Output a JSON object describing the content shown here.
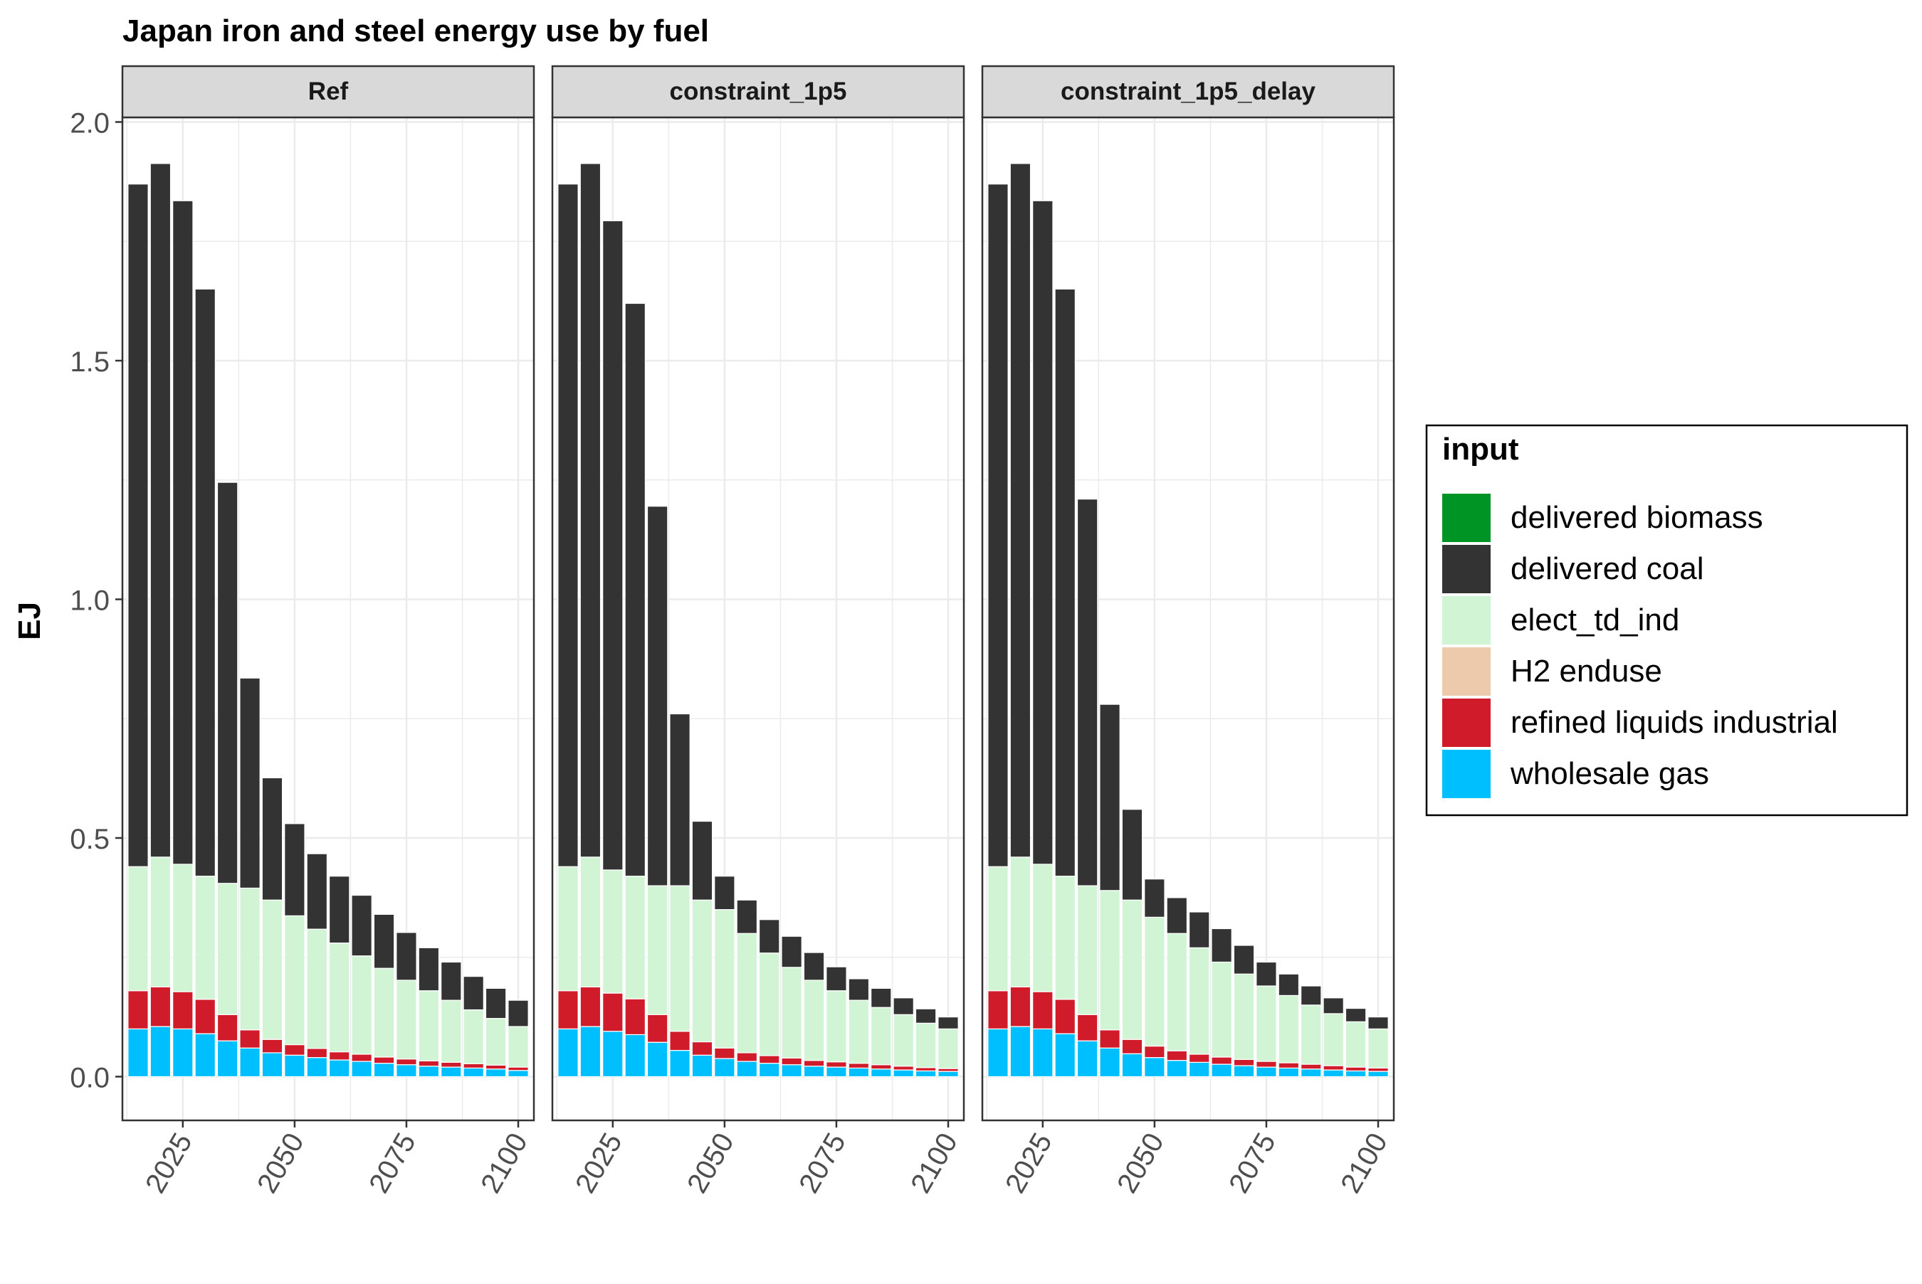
{
  "chart_data": {
    "type": "bar",
    "stacked": true,
    "faceted": true,
    "title": "Japan iron and steel energy use by fuel",
    "xlabel": "",
    "ylabel": "EJ",
    "ylim": [
      -0.09,
      2.0
    ],
    "y_ticks": [
      0.0,
      0.5,
      1.0,
      1.5,
      2.0
    ],
    "y_tick_labels": [
      "0.0",
      "0.5",
      "1.0",
      "1.5",
      "2.0"
    ],
    "x_ticks": [
      2025,
      2050,
      2075,
      2100
    ],
    "x_tick_labels": [
      "2025",
      "2050",
      "2075",
      "2100"
    ],
    "xlim": [
      2011.5,
      2103.5
    ],
    "grid": true,
    "legend_position": "right",
    "legend": {
      "title": "input",
      "entries": [
        {
          "name": "delivered biomass",
          "color": "#009425"
        },
        {
          "name": "delivered coal",
          "color": "#333333"
        },
        {
          "name": "elect_td_ind",
          "color": "#d1f4d5"
        },
        {
          "name": "H2 enduse",
          "color": "#edcaac"
        },
        {
          "name": "refined liquids industrial",
          "color": "#d01c2a"
        },
        {
          "name": "wholesale gas",
          "color": "#00bfff"
        }
      ]
    },
    "x": [
      2015,
      2020,
      2025,
      2030,
      2035,
      2040,
      2045,
      2050,
      2055,
      2060,
      2065,
      2070,
      2075,
      2080,
      2085,
      2090,
      2095,
      2100
    ],
    "panels": [
      {
        "name": "Ref",
        "series": [
          {
            "name": "wholesale gas",
            "values": [
              0.1,
              0.105,
              0.1,
              0.09,
              0.075,
              0.06,
              0.05,
              0.045,
              0.04,
              0.035,
              0.032,
              0.028,
              0.025,
              0.022,
              0.02,
              0.018,
              0.016,
              0.013
            ]
          },
          {
            "name": "refined liquids industrial",
            "values": [
              0.08,
              0.083,
              0.078,
              0.072,
              0.055,
              0.038,
              0.028,
              0.022,
              0.019,
              0.017,
              0.015,
              0.013,
              0.012,
              0.011,
              0.01,
              0.009,
              0.008,
              0.007
            ]
          },
          {
            "name": "H2 enduse",
            "values": [
              0,
              0,
              0,
              0,
              0,
              0,
              0,
              0,
              0,
              0,
              0,
              0,
              0,
              0,
              0,
              0,
              0,
              0
            ]
          },
          {
            "name": "elect_td_ind",
            "values": [
              0.26,
              0.272,
              0.267,
              0.258,
              0.275,
              0.297,
              0.292,
              0.27,
              0.25,
              0.228,
              0.206,
              0.186,
              0.165,
              0.147,
              0.13,
              0.113,
              0.098,
              0.085
            ]
          },
          {
            "name": "delivered coal",
            "values": [
              1.43,
              1.453,
              1.39,
              1.23,
              0.84,
              0.44,
              0.256,
              0.193,
              0.158,
              0.14,
              0.127,
              0.113,
              0.1,
              0.09,
              0.08,
              0.07,
              0.063,
              0.055
            ]
          },
          {
            "name": "delivered biomass",
            "values": [
              0,
              0,
              0,
              0,
              0,
              0,
              0,
              0,
              0,
              0,
              0,
              0,
              0,
              0,
              0,
              0,
              0,
              0
            ]
          }
        ]
      },
      {
        "name": "constraint_1p5",
        "series": [
          {
            "name": "wholesale gas",
            "values": [
              0.1,
              0.105,
              0.095,
              0.088,
              0.072,
              0.055,
              0.045,
              0.038,
              0.032,
              0.028,
              0.025,
              0.022,
              0.02,
              0.018,
              0.016,
              0.014,
              0.012,
              0.011
            ]
          },
          {
            "name": "refined liquids industrial",
            "values": [
              0.08,
              0.083,
              0.08,
              0.075,
              0.058,
              0.04,
              0.028,
              0.022,
              0.018,
              0.016,
              0.014,
              0.012,
              0.011,
              0.01,
              0.009,
              0.008,
              0.007,
              0.006
            ]
          },
          {
            "name": "H2 enduse",
            "values": [
              0,
              0,
              0,
              0,
              0,
              0,
              0,
              0,
              0,
              0,
              0,
              0,
              0,
              0,
              0,
              0,
              0,
              0
            ]
          },
          {
            "name": "elect_td_ind",
            "values": [
              0.26,
              0.272,
              0.258,
              0.257,
              0.27,
              0.305,
              0.297,
              0.29,
              0.25,
              0.215,
              0.19,
              0.168,
              0.149,
              0.132,
              0.12,
              0.108,
              0.093,
              0.083
            ]
          },
          {
            "name": "delivered coal",
            "values": [
              1.43,
              1.453,
              1.36,
              1.2,
              0.795,
              0.36,
              0.165,
              0.07,
              0.07,
              0.07,
              0.065,
              0.058,
              0.05,
              0.045,
              0.04,
              0.035,
              0.03,
              0.025
            ]
          },
          {
            "name": "delivered biomass",
            "values": [
              0,
              0,
              0,
              0,
              0,
              0,
              0,
              0,
              0,
              0,
              0,
              0,
              0,
              0,
              0,
              0,
              0,
              0
            ]
          }
        ]
      },
      {
        "name": "constraint_1p5_delay",
        "series": [
          {
            "name": "wholesale gas",
            "values": [
              0.1,
              0.105,
              0.1,
              0.09,
              0.075,
              0.06,
              0.048,
              0.04,
              0.034,
              0.03,
              0.026,
              0.023,
              0.02,
              0.018,
              0.016,
              0.014,
              0.012,
              0.011
            ]
          },
          {
            "name": "refined liquids industrial",
            "values": [
              0.08,
              0.083,
              0.078,
              0.072,
              0.055,
              0.038,
              0.03,
              0.024,
              0.02,
              0.017,
              0.015,
              0.013,
              0.012,
              0.011,
              0.01,
              0.009,
              0.008,
              0.007
            ]
          },
          {
            "name": "H2 enduse",
            "values": [
              0,
              0,
              0,
              0,
              0,
              0,
              0,
              0,
              0,
              0,
              0,
              0,
              0,
              0,
              0,
              0,
              0,
              0
            ]
          },
          {
            "name": "elect_td_ind",
            "values": [
              0.26,
              0.272,
              0.267,
              0.258,
              0.27,
              0.292,
              0.292,
              0.27,
              0.246,
              0.223,
              0.199,
              0.179,
              0.158,
              0.141,
              0.124,
              0.109,
              0.095,
              0.082
            ]
          },
          {
            "name": "delivered coal",
            "values": [
              1.43,
              1.453,
              1.39,
              1.23,
              0.81,
              0.39,
              0.19,
              0.08,
              0.075,
              0.075,
              0.07,
              0.06,
              0.05,
              0.045,
              0.04,
              0.033,
              0.028,
              0.025
            ]
          },
          {
            "name": "delivered biomass",
            "values": [
              0,
              0,
              0,
              0,
              0,
              0,
              0,
              0,
              0,
              0,
              0,
              0,
              0,
              0,
              0,
              0,
              0,
              0
            ]
          }
        ]
      }
    ]
  }
}
